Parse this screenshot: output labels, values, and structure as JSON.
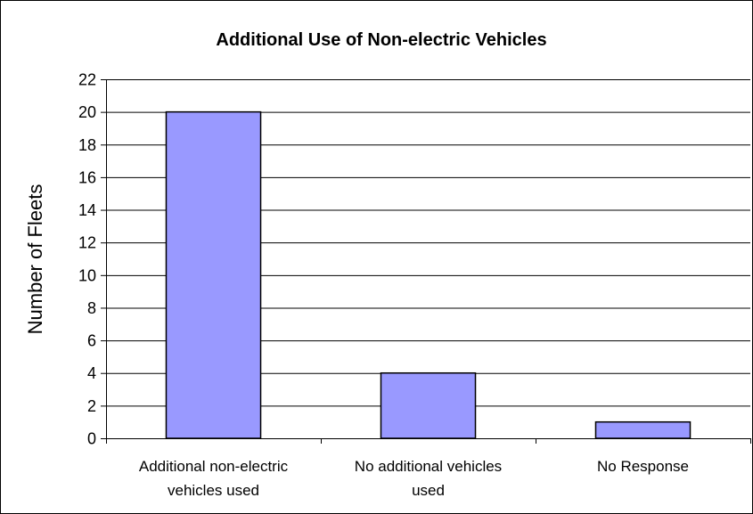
{
  "chart_data": {
    "type": "bar",
    "title": "Additional Use of Non-electric Vehicles",
    "xlabel": "",
    "ylabel": "Number of Fleets",
    "categories": [
      [
        "Additional non-electric",
        "vehicles used"
      ],
      [
        "No additional vehicles",
        "used"
      ],
      [
        "No Response"
      ]
    ],
    "values": [
      20,
      4,
      1
    ],
    "ylim": [
      0,
      22
    ],
    "yticks": [
      0,
      2,
      4,
      6,
      8,
      10,
      12,
      14,
      16,
      18,
      20,
      22
    ],
    "grid": true,
    "legend": "none"
  },
  "colors": {
    "bar_fill": "#9999ff",
    "bar_stroke": "#000000",
    "grid": "#000000",
    "plot_background": "#ffffff"
  }
}
